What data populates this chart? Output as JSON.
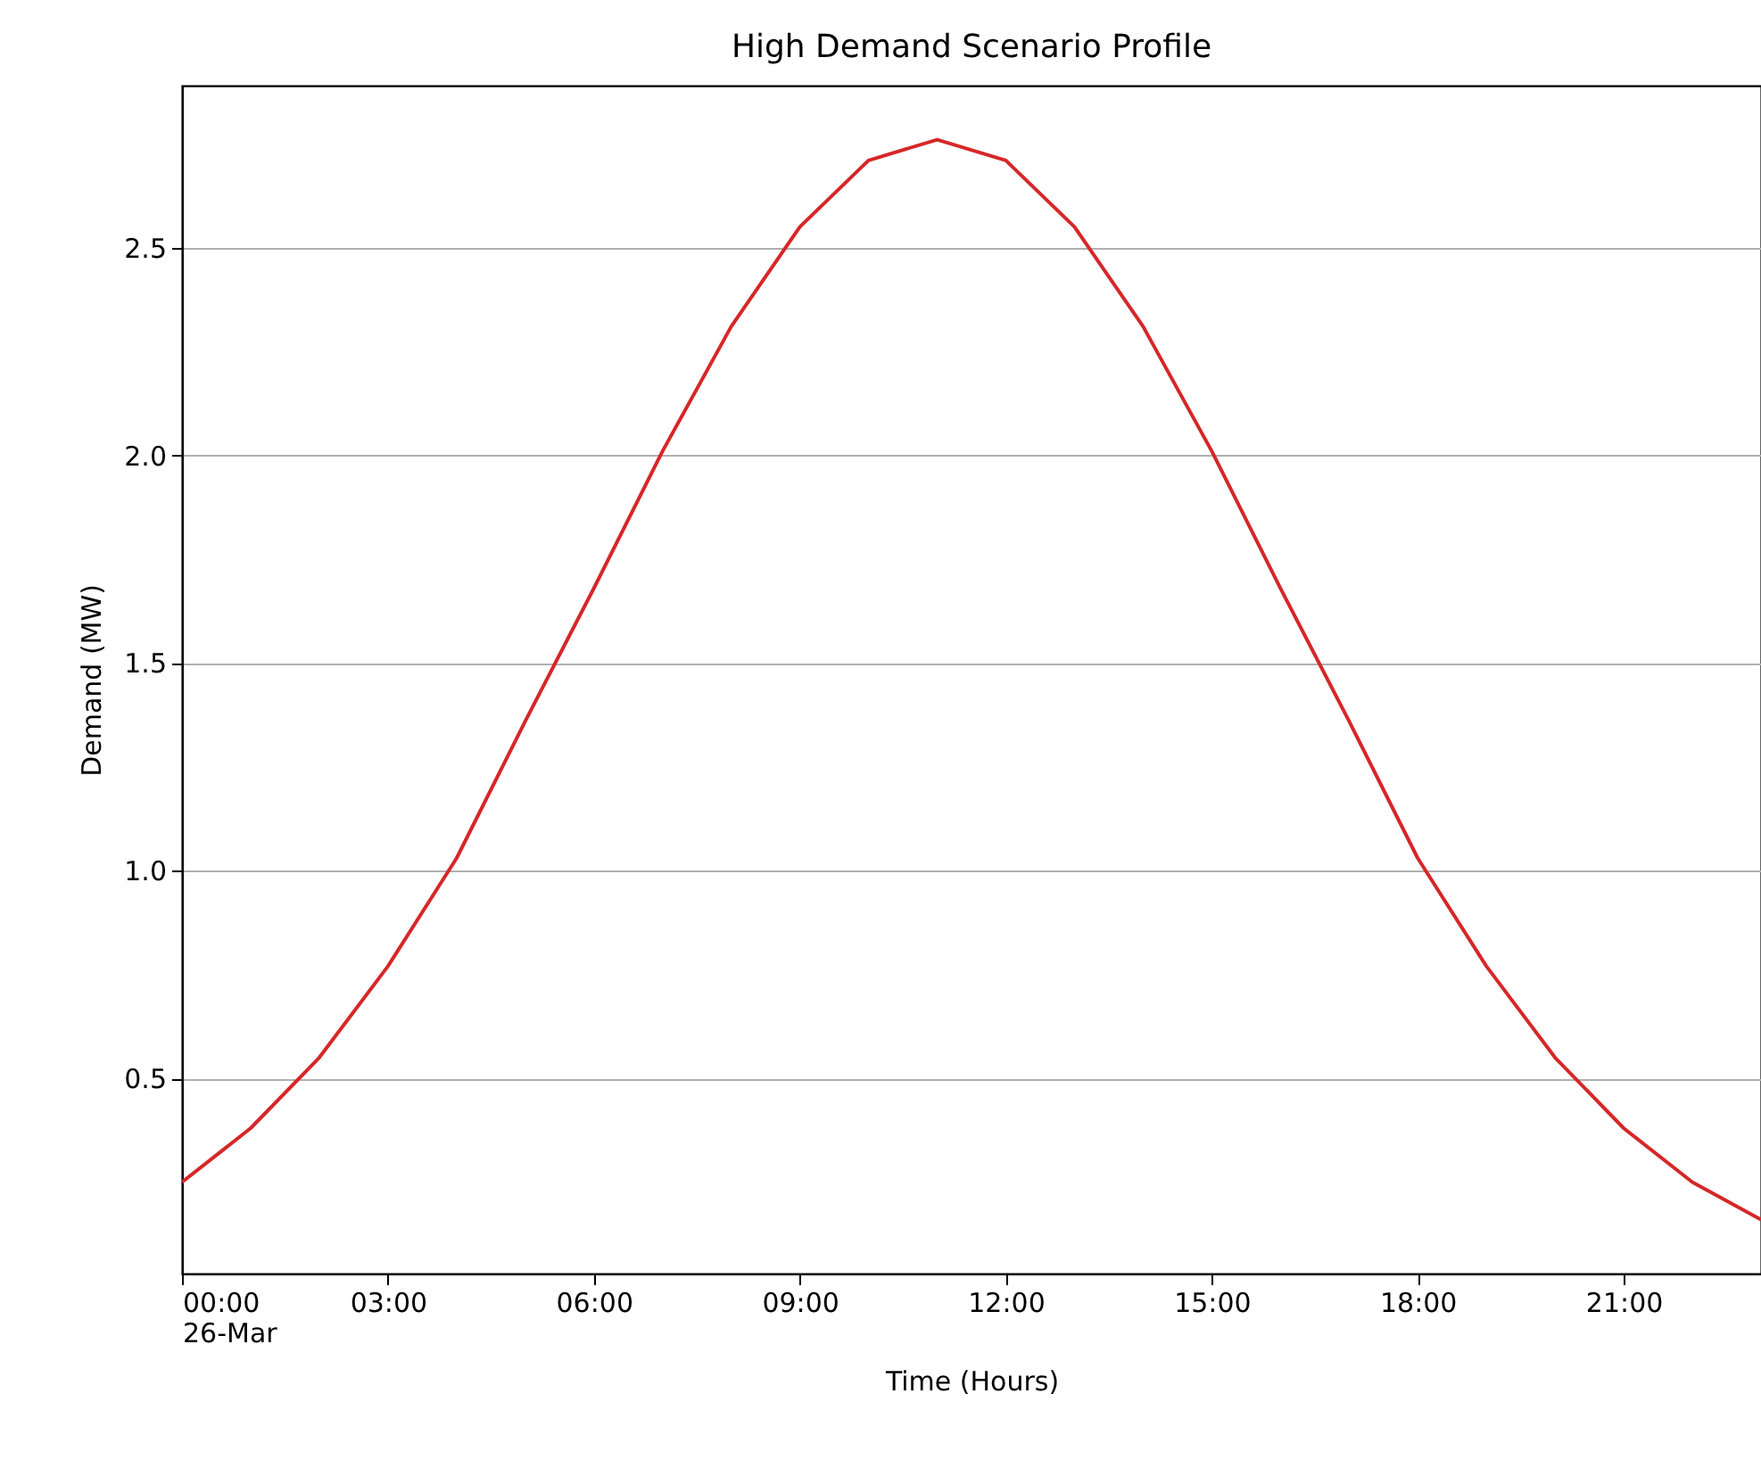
{
  "chart_data": {
    "type": "line",
    "title": "High Demand Scenario Profile",
    "xlabel": "Time (Hours)",
    "ylabel": "Demand (MW)",
    "x": [
      0,
      1,
      2,
      3,
      4,
      5,
      6,
      7,
      8,
      9,
      10,
      11,
      12,
      13,
      14,
      15,
      16,
      17,
      18,
      19,
      20,
      21,
      22,
      23
    ],
    "series": [
      {
        "color": "#d62728",
        "values": [
          0.25,
          0.38,
          0.55,
          0.77,
          1.03,
          1.36,
          1.68,
          2.01,
          2.31,
          2.55,
          2.71,
          2.76,
          2.71,
          2.55,
          2.31,
          2.01,
          1.68,
          1.36,
          1.03,
          0.77,
          0.55,
          0.38,
          0.25,
          0.16
        ]
      }
    ],
    "xlim": [
      0,
      23
    ],
    "ylim": [
      0.03,
      2.89
    ],
    "xticks": [
      {
        "value": 0,
        "label": "00:00\n26-Mar"
      },
      {
        "value": 3,
        "label": "03:00"
      },
      {
        "value": 6,
        "label": "06:00"
      },
      {
        "value": 9,
        "label": "09:00"
      },
      {
        "value": 12,
        "label": "12:00"
      },
      {
        "value": 15,
        "label": "15:00"
      },
      {
        "value": 18,
        "label": "18:00"
      },
      {
        "value": 21,
        "label": "21:00"
      }
    ],
    "yticks": [
      0.5,
      {
        "value": 1,
        "label": "1.0"
      },
      1.5,
      {
        "value": 2,
        "label": "2.0"
      },
      2.5
    ],
    "grid": "y",
    "legend": false,
    "marker": "none",
    "line_style": "solid"
  }
}
